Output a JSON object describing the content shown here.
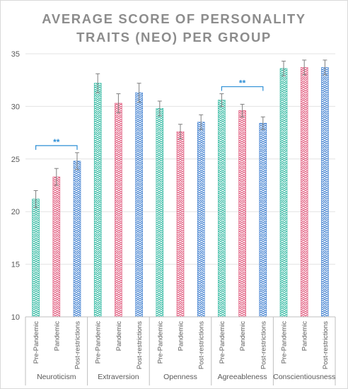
{
  "chart_data": {
    "type": "bar",
    "title_lines": [
      "AVERAGE SCORE OF PERSONALITY",
      "TRAITS (NEO) PER GROUP"
    ],
    "groups": [
      "Neuroticism",
      "Extraversion",
      "Openness",
      "Agreeableness",
      "Conscientiousness"
    ],
    "subcategories": [
      "Pre-Pandemic",
      "Pandemic",
      "Post-restrictions"
    ],
    "series_colors": [
      "#2eb8a0",
      "#e0567a",
      "#3f7fd0"
    ],
    "values": [
      [
        21.2,
        23.3,
        24.8
      ],
      [
        32.2,
        30.3,
        31.3
      ],
      [
        29.8,
        27.6,
        28.5
      ],
      [
        30.6,
        29.6,
        28.4
      ],
      [
        33.6,
        33.7,
        33.7
      ]
    ],
    "errors": [
      [
        0.8,
        0.8,
        0.8
      ],
      [
        0.9,
        0.9,
        0.9
      ],
      [
        0.7,
        0.7,
        0.7
      ],
      [
        0.6,
        0.6,
        0.6
      ],
      [
        0.7,
        0.7,
        0.7
      ]
    ],
    "yticks": [
      10,
      15,
      20,
      25,
      30,
      35
    ],
    "ylim": [
      10,
      35
    ],
    "significance": [
      {
        "group": 0,
        "from": 0,
        "to": 2,
        "label": "**"
      },
      {
        "group": 3,
        "from": 0,
        "to": 2,
        "label": "**"
      }
    ],
    "significance_color": "#2e8fd6",
    "gridlines": true
  }
}
